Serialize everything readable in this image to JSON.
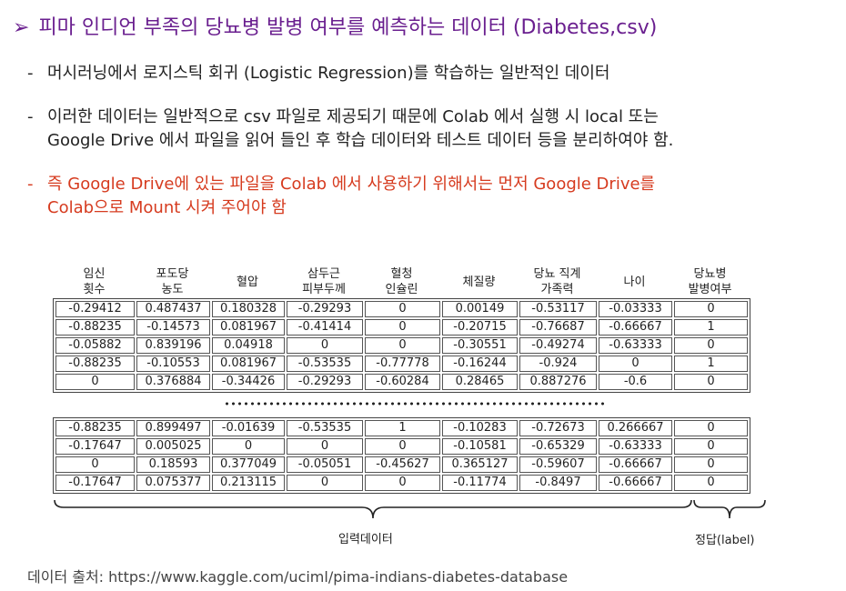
{
  "title": {
    "arrow": "➢",
    "text": "피마 인디언 부족의 당뇨병 발병 여부를 예측하는 데이터 (Diabetes,csv)"
  },
  "bullets": [
    {
      "dash": "-",
      "lines": [
        "머시러닝에서 로지스틱 회귀 (Logistic Regression)를 학습하는 일반적인 데이터"
      ]
    },
    {
      "dash": "-",
      "lines": [
        "이러한 데이터는 일반적으로 csv 파일로 제공되기 때문에 Colab 에서 실행 시 local 또는",
        "Google Drive 에서 파일을 읽어 들인 후 학습 데이터와 테스트 데이터 등을 분리하여야 함."
      ]
    },
    {
      "dash": "-",
      "lines": [
        "즉 Google Drive에 있는 파일을 Colab 에서 사용하기 위해서는 먼저 Google Drive를",
        "Colab으로 Mount 시켜 주어야 함"
      ]
    }
  ],
  "columns": [
    "임신\n횟수",
    "포도당\n농도",
    "혈압",
    "삼두근\n피부두께",
    "혈청\n인슐린",
    "체질량",
    "당뇨 직계\n가족력",
    "나이",
    "당뇨병\n발병여부"
  ],
  "table_top": [
    [
      "-0.29412",
      "0.487437",
      "0.180328",
      "-0.29293",
      "0",
      "0.00149",
      "-0.53117",
      "-0.03333",
      "0"
    ],
    [
      "-0.88235",
      "-0.14573",
      "0.081967",
      "-0.41414",
      "0",
      "-0.20715",
      "-0.76687",
      "-0.66667",
      "1"
    ],
    [
      "-0.05882",
      "0.839196",
      "0.04918",
      "0",
      "0",
      "-0.30551",
      "-0.49274",
      "-0.63333",
      "0"
    ],
    [
      "-0.88235",
      "-0.10553",
      "0.081967",
      "-0.53535",
      "-0.77778",
      "-0.16244",
      "-0.924",
      "0",
      "1"
    ],
    [
      "0",
      "0.376884",
      "-0.34426",
      "-0.29293",
      "-0.60284",
      "0.28465",
      "0.887276",
      "-0.6",
      "0"
    ]
  ],
  "table_bottom": [
    [
      "-0.88235",
      "0.899497",
      "-0.01639",
      "-0.53535",
      "1",
      "-0.10283",
      "-0.72673",
      "0.266667",
      "0"
    ],
    [
      "-0.17647",
      "0.005025",
      "0",
      "0",
      "0",
      "-0.10581",
      "-0.65329",
      "-0.63333",
      "0"
    ],
    [
      "0",
      "0.18593",
      "0.377049",
      "-0.05051",
      "-0.45627",
      "0.365127",
      "-0.59607",
      "-0.66667",
      "0"
    ],
    [
      "-0.17647",
      "0.075377",
      "0.213115",
      "0",
      "0",
      "-0.11774",
      "-0.8497",
      "-0.66667",
      "0"
    ]
  ],
  "labels": {
    "input": "입력데이터",
    "answer": "정답(label)"
  },
  "source": "데이터 출처: https://www.kaggle.com/uciml/pima-indians-diabetes-database",
  "colors": {
    "title": "#6a1f8f",
    "emphasis": "#d63b1f"
  }
}
